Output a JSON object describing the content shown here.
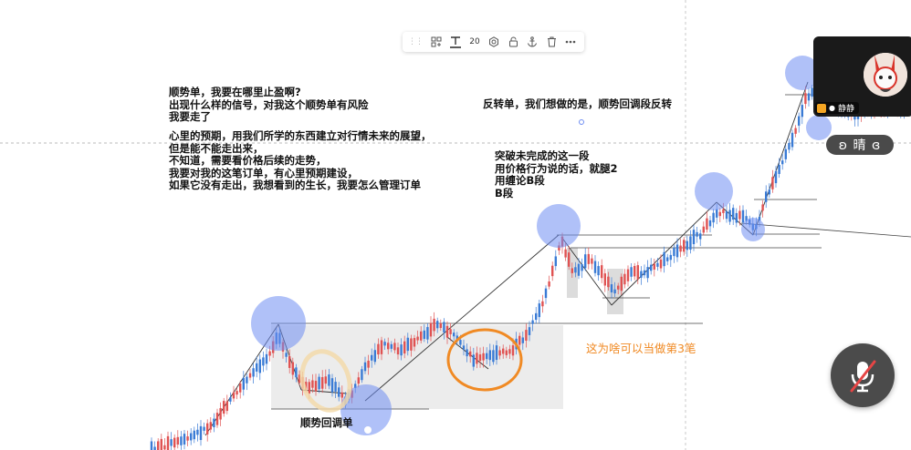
{
  "toolbar": {
    "grip": "⋮⋮",
    "font_size": "20",
    "icons": [
      "grip-icon",
      "layout-icon",
      "text-icon",
      "settings-icon",
      "lock-icon",
      "anchor-icon",
      "trash-icon",
      "more-icon"
    ]
  },
  "notes": {
    "left_block_1": "顺势单，我要在哪里止盈啊?\n出现什么样的信号，对我这个顺势单有风险\n我要走了",
    "left_block_2": "心里的预期，用我们所学的东西建立对行情未来的展望，\n但是能不能走出来，\n不知道，需要看价格后续的走势，\n我要对我的这笔订单，有心里预期建设，\n如果它没有走出，我想看到的生长，我要怎么管理订单",
    "right_title": "反转单，我们想做的是，顺势回调段反转",
    "right_block": "突破未完成的这一段\n用价格行为说的话，就腿2\n用缠论B段\nB段",
    "bottom_label": "顺势回调单",
    "orange_label": "这为啥可以当做第3笔"
  },
  "video": {
    "name": "静静",
    "weather_text": "ʚ 晴 ɞ"
  },
  "colors": {
    "bull": "#3a7bd5",
    "bear": "#e05252",
    "circle": "#6f8ef2",
    "orange": "#f08a24",
    "box": "#e9e9e9"
  }
}
